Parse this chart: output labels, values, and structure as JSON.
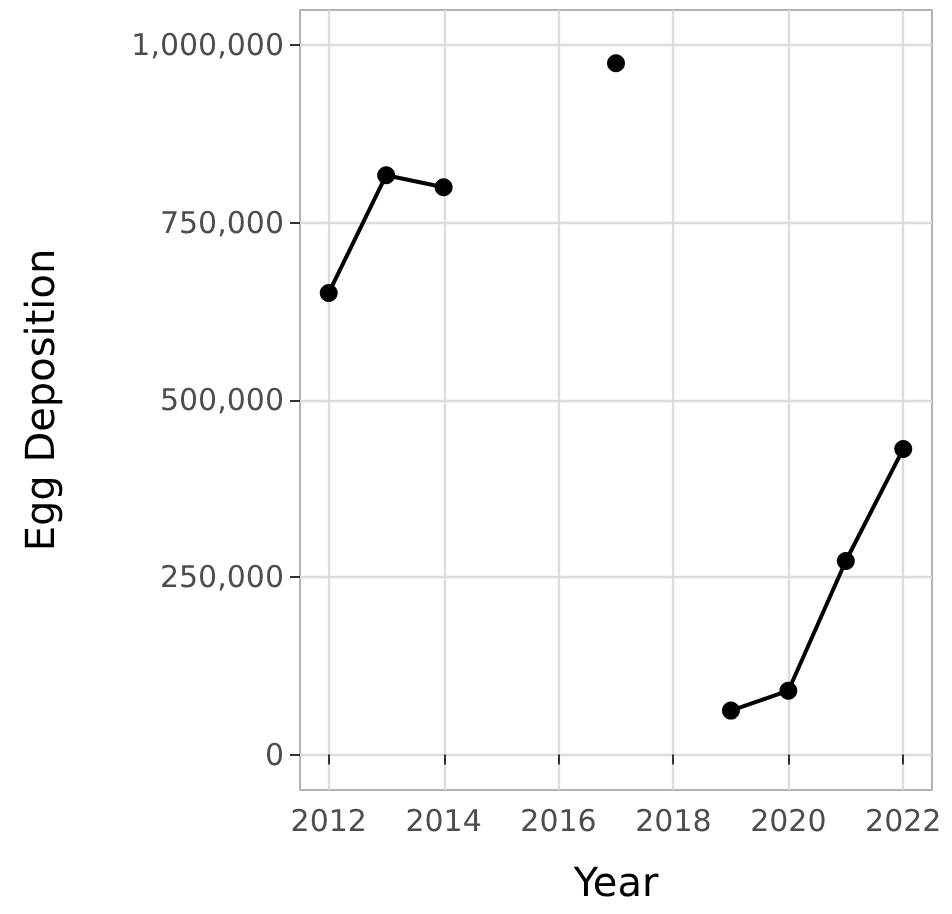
{
  "chart_data": {
    "type": "line",
    "xlabel": "Year",
    "ylabel": "Egg Deposition",
    "x": [
      2012,
      2013,
      2014,
      2015,
      2016,
      2017,
      2018,
      2019,
      2020,
      2021,
      2022
    ],
    "series": [
      {
        "color": "#000000",
        "values": [
          651000,
          817000,
          800000,
          null,
          null,
          975000,
          null,
          62000,
          90000,
          273000,
          431000
        ]
      }
    ],
    "xlim": [
      2011.5,
      2022.5
    ],
    "xticks": [
      2012,
      2014,
      2016,
      2018,
      2020,
      2022
    ],
    "ylim": [
      -50000,
      1050000
    ],
    "yticks": [
      0,
      {
        "value": 250000,
        "label": "250,000"
      },
      {
        "value": 500000,
        "label": "500,000"
      },
      {
        "value": 750000,
        "label": "750,000"
      },
      {
        "value": 1000000,
        "label": "1,000,000"
      }
    ],
    "grid": true,
    "marker": "circle",
    "line_style": "solid"
  }
}
